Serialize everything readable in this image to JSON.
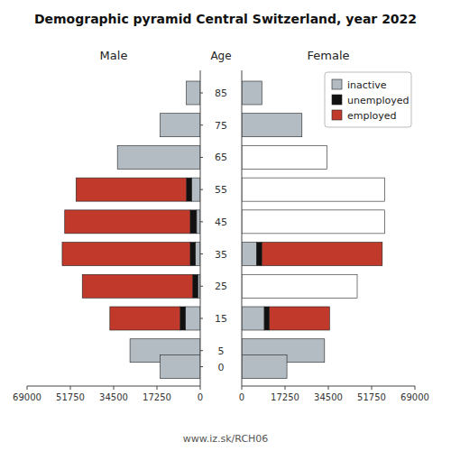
{
  "chart_data": [
    {
      "type": "bar",
      "orientation": "horizontal",
      "stacked": true,
      "title": "Male",
      "ylabel": "Age",
      "annotations": [
        "Demographic pyramid Central Switzerland, year 2022",
        "www.iz.sk/RCH06"
      ],
      "categories": [
        85,
        75,
        65,
        55,
        45,
        35,
        25,
        15,
        5,
        0
      ],
      "series": [
        {
          "name": "inactive",
          "color": "#b3bcc2",
          "values": [
            5500,
            16000,
            33000,
            3500,
            1500,
            2000,
            1000,
            6000,
            28000,
            16000
          ]
        },
        {
          "name": "unemployed",
          "color": "#111111",
          "values": [
            0,
            0,
            0,
            2000,
            2500,
            2000,
            2000,
            2000,
            0,
            0
          ]
        },
        {
          "name": "employed",
          "color": "#c0392b",
          "values": [
            0,
            0,
            0,
            44000,
            50000,
            51000,
            44000,
            28000,
            0,
            0
          ]
        }
      ],
      "xlim": [
        69000,
        0
      ],
      "xticks": [
        69000,
        51750,
        34500,
        17250,
        0
      ],
      "ylim": [
        -6,
        92
      ],
      "yticks": [
        85,
        75,
        65,
        55,
        45,
        35,
        25,
        15,
        5,
        0
      ]
    },
    {
      "type": "bar",
      "orientation": "horizontal",
      "stacked": true,
      "title": "Female",
      "tick_labels": "x",
      "legend": "upper right",
      "categories": [
        85,
        75,
        65,
        55,
        45,
        35,
        25,
        15,
        5,
        0
      ],
      "series": [
        {
          "name": "inactive",
          "color": "#b3bcc2",
          "values": [
            8000,
            24000,
            0,
            0,
            0,
            6000,
            0,
            9000,
            33000,
            18000
          ]
        },
        {
          "name": "unemployed",
          "color": "#111111",
          "values": [
            0,
            0,
            0,
            0,
            0,
            2000,
            0,
            2000,
            0,
            0
          ]
        },
        {
          "name": "employed",
          "color": "#c0392b",
          "values": [
            0,
            0,
            0,
            0,
            0,
            48000,
            0,
            24000,
            0,
            0
          ]
        },
        {
          "color": "#ffffff",
          "values": [
            null,
            null,
            34000,
            57000,
            57000,
            null,
            46000,
            null,
            null,
            null
          ]
        }
      ],
      "xlim": [
        0,
        69000
      ],
      "xticks": [
        0,
        17250,
        34500,
        51750,
        69000
      ],
      "ylim": [
        -6,
        92
      ]
    }
  ]
}
